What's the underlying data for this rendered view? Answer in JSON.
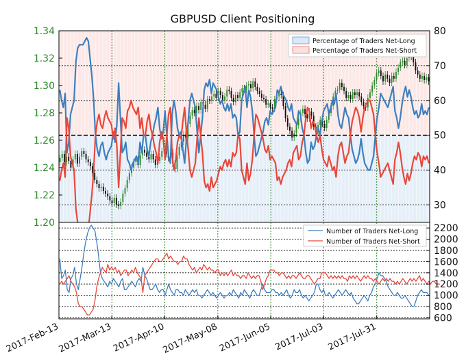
{
  "chart_data": {
    "type": "line",
    "title": "GBPUSD Client Positioning",
    "colors": {
      "price_left_axis": "#2e8b2e",
      "net_long": "#3d7fbf",
      "net_long_fill": "#dbe8f5",
      "net_short": "#e8473a",
      "net_short_fill": "#fbe0dd",
      "candle_up": "#2e8b2e",
      "candle_down": "#111111",
      "grid": "#2e8b2e",
      "grid_dark": "#222222"
    },
    "x_tick_labels": [
      "2017-Feb-13",
      "2017-Mar-13",
      "2017-Apr-10",
      "2017-May-08",
      "2017-Jun-05",
      "2017-Jul-03",
      "2017-Jul-31"
    ],
    "top_panel": {
      "left_axis": {
        "ylim": [
          1.2,
          1.34
        ],
        "ticks": [
          "1.20",
          "1.22",
          "1.24",
          "1.26",
          "1.28",
          "1.30",
          "1.32",
          "1.34"
        ]
      },
      "right_axis": {
        "ylim": [
          25,
          80
        ],
        "ticks": [
          "30",
          "40",
          "50",
          "60",
          "70",
          "80"
        ]
      },
      "legend": {
        "placement": "top-right",
        "entries": [
          "Percentage of Traders Net-Long",
          "Percentage of Traders Net-Short"
        ]
      },
      "reference_line": 50,
      "series": [
        {
          "name": "Percentage of Traders Net-Long",
          "values": [
            63,
            60,
            58,
            62,
            45,
            48,
            56,
            58,
            60,
            71,
            75,
            76,
            76,
            76,
            77,
            78,
            77,
            72,
            67,
            60,
            50,
            46,
            44,
            47,
            48,
            45,
            43,
            45,
            46,
            47,
            51,
            48,
            53,
            65,
            55,
            45,
            46,
            48,
            43,
            42,
            40,
            42,
            43,
            44,
            42,
            48,
            45,
            50,
            50,
            46,
            44,
            48,
            50,
            53,
            55,
            58,
            52,
            49,
            51,
            57,
            50,
            44,
            42,
            56,
            60,
            57,
            52,
            50,
            51,
            46,
            42,
            49,
            54,
            60,
            62,
            60,
            58,
            51,
            45,
            50,
            55,
            63,
            65,
            64,
            66,
            62,
            65,
            64,
            63,
            61,
            59,
            60,
            58,
            57,
            59,
            57,
            59,
            55,
            56,
            55,
            50,
            51,
            60,
            62,
            64,
            58,
            63,
            61,
            57,
            50,
            44,
            45,
            47,
            49,
            51,
            54,
            55,
            53,
            57,
            56,
            57,
            58,
            63,
            62,
            64,
            62,
            61,
            60,
            58,
            57,
            59,
            55,
            54,
            53,
            57,
            56,
            52,
            50,
            45,
            42,
            43,
            48,
            46,
            47,
            50,
            52,
            50,
            54,
            57,
            58,
            59,
            56,
            58,
            60,
            59,
            62,
            56,
            53,
            52,
            55,
            58,
            56,
            55,
            50,
            46,
            44,
            42,
            43,
            45,
            49,
            45,
            42,
            41,
            40,
            40,
            42,
            44,
            50,
            55,
            58,
            62,
            61,
            60,
            59,
            58,
            60,
            62,
            64,
            57,
            55,
            52,
            55,
            59,
            62,
            64,
            61,
            63,
            61,
            58,
            56,
            57,
            55,
            56,
            59,
            56,
            57,
            56,
            58
          ]
        },
        {
          "name": "Percentage of Traders Net-Short",
          "values": [
            37,
            40,
            42,
            38,
            55,
            52,
            44,
            42,
            40,
            29,
            25,
            24,
            24,
            24,
            23,
            22,
            23,
            28,
            33,
            40,
            50,
            54,
            56,
            53,
            52,
            55,
            57,
            55,
            54,
            53,
            49,
            52,
            47,
            35,
            45,
            55,
            54,
            52,
            57,
            58,
            60,
            58,
            57,
            56,
            58,
            52,
            55,
            50,
            50,
            54,
            56,
            52,
            50,
            47,
            45,
            42,
            48,
            51,
            49,
            43,
            50,
            56,
            58,
            44,
            40,
            43,
            48,
            50,
            49,
            54,
            58,
            51,
            46,
            40,
            38,
            40,
            42,
            49,
            55,
            50,
            45,
            37,
            35,
            36,
            34,
            38,
            35,
            36,
            37,
            39,
            41,
            40,
            42,
            43,
            41,
            43,
            41,
            45,
            44,
            45,
            50,
            49,
            40,
            38,
            36,
            42,
            37,
            39,
            43,
            50,
            56,
            55,
            53,
            51,
            49,
            46,
            45,
            47,
            43,
            44,
            43,
            42,
            37,
            38,
            36,
            38,
            39,
            40,
            42,
            43,
            41,
            45,
            46,
            47,
            43,
            44,
            48,
            50,
            55,
            58,
            57,
            52,
            54,
            53,
            50,
            48,
            50,
            46,
            43,
            42,
            41,
            44,
            42,
            40,
            41,
            38,
            44,
            47,
            48,
            45,
            42,
            44,
            45,
            50,
            54,
            56,
            58,
            57,
            55,
            51,
            55,
            58,
            59,
            60,
            60,
            58,
            56,
            50,
            45,
            42,
            38,
            39,
            40,
            41,
            42,
            40,
            38,
            36,
            43,
            45,
            48,
            45,
            41,
            38,
            36,
            39,
            37,
            39,
            42,
            44,
            43,
            45,
            44,
            41,
            44,
            43,
            44,
            42
          ]
        }
      ]
    },
    "bottom_panel": {
      "right_axis": {
        "ylim": [
          580,
          2300
        ],
        "ticks": [
          "600",
          "800",
          "1000",
          "1200",
          "1400",
          "1600",
          "1800",
          "2000",
          "2200"
        ]
      },
      "legend": {
        "placement": "top-right",
        "entries": [
          "Number of Traders Net-Long",
          "Number of Traders Net-Short"
        ]
      },
      "series": [
        {
          "name": "Number of Traders Net-Long",
          "values": [
            1650,
            1300,
            1350,
            1450,
            1100,
            1050,
            1300,
            1350,
            1500,
            1200,
            1100,
            1300,
            1500,
            1750,
            1950,
            2100,
            2200,
            2250,
            2200,
            2150,
            1950,
            1700,
            1400,
            1300,
            1250,
            1200,
            1150,
            1250,
            1200,
            1300,
            1250,
            1200,
            1150,
            1250,
            1300,
            1100,
            1100,
            1150,
            1200,
            1250,
            1200,
            1150,
            1250,
            1300,
            1250,
            1500,
            1350,
            1300,
            1200,
            1100,
            1100,
            1150,
            1200,
            1100,
            1050,
            1100,
            1100,
            1000,
            1100,
            1200,
            1100,
            1050,
            1000,
            1100,
            1100,
            1050,
            1050,
            1000,
            1100,
            1050,
            1000,
            1050,
            1100,
            1050,
            1100,
            1000,
            1000,
            950,
            1000,
            1050,
            1100,
            1050,
            1000,
            1050,
            1000,
            950,
            1000,
            1050,
            1000,
            950,
            1000,
            1000,
            1050,
            1000,
            1100,
            1050,
            1000,
            950,
            1050,
            1000,
            1100,
            1050,
            1000,
            950,
            1050,
            1100,
            1050,
            1000,
            1000,
            1100,
            1200,
            1100,
            1050,
            1050,
            1050,
            1100,
            1100,
            1050,
            1050,
            1000,
            1050,
            1000,
            1050,
            1100,
            1000,
            950,
            1000,
            1100,
            1050,
            1050,
            1100,
            1000,
            950,
            1000,
            950,
            900,
            950,
            1000,
            1050,
            1200,
            1200,
            1100,
            1050,
            1100,
            1000,
            1000,
            1050,
            1000,
            950,
            1000,
            1050,
            1100,
            1050,
            1000,
            1050,
            1100,
            1050,
            1000,
            1050,
            950,
            900,
            850,
            850,
            900,
            950,
            1000,
            950,
            900,
            1000,
            1050,
            1150,
            1200,
            1300,
            1400,
            1350,
            1350,
            1300,
            1250,
            1150,
            1100,
            1050,
            1000,
            1000,
            1050,
            1000,
            950,
            950,
            1000,
            950,
            900,
            850,
            800,
            800,
            900,
            1000,
            1050,
            1100,
            1050,
            1050,
            1050,
            1000
          ]
        },
        {
          "name": "Number of Traders Net-Short",
          "values": [
            1200,
            1250,
            1200,
            1250,
            1300,
            1350,
            1250,
            1200,
            1150,
            1050,
            850,
            800,
            800,
            750,
            700,
            650,
            650,
            700,
            750,
            900,
            1150,
            1300,
            1400,
            1500,
            1450,
            1400,
            1550,
            1450,
            1500,
            1450,
            1500,
            1400,
            1450,
            1350,
            1400,
            1450,
            1450,
            1350,
            1400,
            1450,
            1400,
            1500,
            1400,
            1350,
            1300,
            1050,
            1350,
            1400,
            1450,
            1500,
            1550,
            1600,
            1650,
            1650,
            1600,
            1600,
            1650,
            1700,
            1750,
            1650,
            1700,
            1650,
            1600,
            1600,
            1550,
            1600,
            1600,
            1700,
            1650,
            1650,
            1550,
            1500,
            1450,
            1500,
            1400,
            1450,
            1500,
            1450,
            1550,
            1500,
            1450,
            1500,
            1450,
            1450,
            1400,
            1450,
            1450,
            1350,
            1400,
            1350,
            1400,
            1350,
            1400,
            1450,
            1350,
            1400,
            1350,
            1350,
            1300,
            1350,
            1350,
            1300,
            1400,
            1350,
            1300,
            1350,
            1300,
            1350,
            1350,
            1250,
            1100,
            1200,
            1300,
            1350,
            1450,
            1450,
            1450,
            1400,
            1400,
            1350,
            1400,
            1400,
            1350,
            1300,
            1350,
            1300,
            1350,
            1350,
            1300,
            1350,
            1400,
            1350,
            1300,
            1300,
            1350,
            1350,
            1300,
            1250,
            1200,
            1250,
            1300,
            1300,
            1400,
            1400,
            1400,
            1350,
            1300,
            1350,
            1300,
            1350,
            1300,
            1350,
            1300,
            1350,
            1300,
            1300,
            1250,
            1350,
            1300,
            1350,
            1300,
            1350,
            1300,
            1250,
            1300,
            1350,
            1300,
            1350,
            1300,
            1300,
            1250,
            1300,
            1250,
            1200,
            1250,
            1300,
            1250,
            1300,
            1250,
            1300,
            1250,
            1250,
            1200,
            1250,
            1200,
            1250,
            1300,
            1250,
            1200,
            1250,
            1300,
            1250,
            1300,
            1250,
            1300,
            1350,
            1250,
            1300,
            1250,
            1200,
            1250,
            1200,
            1250,
            1250,
            1200,
            1200,
            1200
          ]
        }
      ]
    },
    "candles": {
      "unit": "GBPUSD price",
      "closes": [
        1.247,
        1.25,
        1.244,
        1.248,
        1.245,
        1.24,
        1.246,
        1.25,
        1.243,
        1.248,
        1.252,
        1.25,
        1.246,
        1.244,
        1.241,
        1.236,
        1.231,
        1.228,
        1.225,
        1.226,
        1.223,
        1.221,
        1.219,
        1.216,
        1.214,
        1.218,
        1.213,
        1.212,
        1.215,
        1.221,
        1.225,
        1.231,
        1.236,
        1.24,
        1.244,
        1.246,
        1.242,
        1.249,
        1.253,
        1.251,
        1.248,
        1.246,
        1.25,
        1.246,
        1.242,
        1.245,
        1.248,
        1.252,
        1.258,
        1.25,
        1.247,
        1.251,
        1.243,
        1.239,
        1.249,
        1.255,
        1.259,
        1.264,
        1.262,
        1.272,
        1.278,
        1.282,
        1.28,
        1.285,
        1.282,
        1.288,
        1.286,
        1.283,
        1.29,
        1.289,
        1.292,
        1.294,
        1.291,
        1.296,
        1.293,
        1.289,
        1.292,
        1.297,
        1.296,
        1.291,
        1.288,
        1.293,
        1.291,
        1.295,
        1.298,
        1.297,
        1.3,
        1.301,
        1.298,
        1.303,
        1.299,
        1.296,
        1.294,
        1.291,
        1.29,
        1.286,
        1.287,
        1.284,
        1.283,
        1.29,
        1.292,
        1.294,
        1.293,
        1.285,
        1.276,
        1.27,
        1.267,
        1.262,
        1.265,
        1.271,
        1.276,
        1.28,
        1.283,
        1.279,
        1.276,
        1.281,
        1.278,
        1.27,
        1.266,
        1.271,
        1.275,
        1.272,
        1.269,
        1.275,
        1.28,
        1.285,
        1.292,
        1.296,
        1.297,
        1.302,
        1.299,
        1.296,
        1.291,
        1.293,
        1.29,
        1.295,
        1.293,
        1.295,
        1.292,
        1.288,
        1.285,
        1.284,
        1.291,
        1.295,
        1.3,
        1.304,
        1.309,
        1.311,
        1.307,
        1.303,
        1.308,
        1.305,
        1.302,
        1.307,
        1.305,
        1.31,
        1.313,
        1.317,
        1.318,
        1.315,
        1.32,
        1.323,
        1.321,
        1.317,
        1.311,
        1.308,
        1.305,
        1.307,
        1.304,
        1.306,
        1.303
      ]
    }
  }
}
